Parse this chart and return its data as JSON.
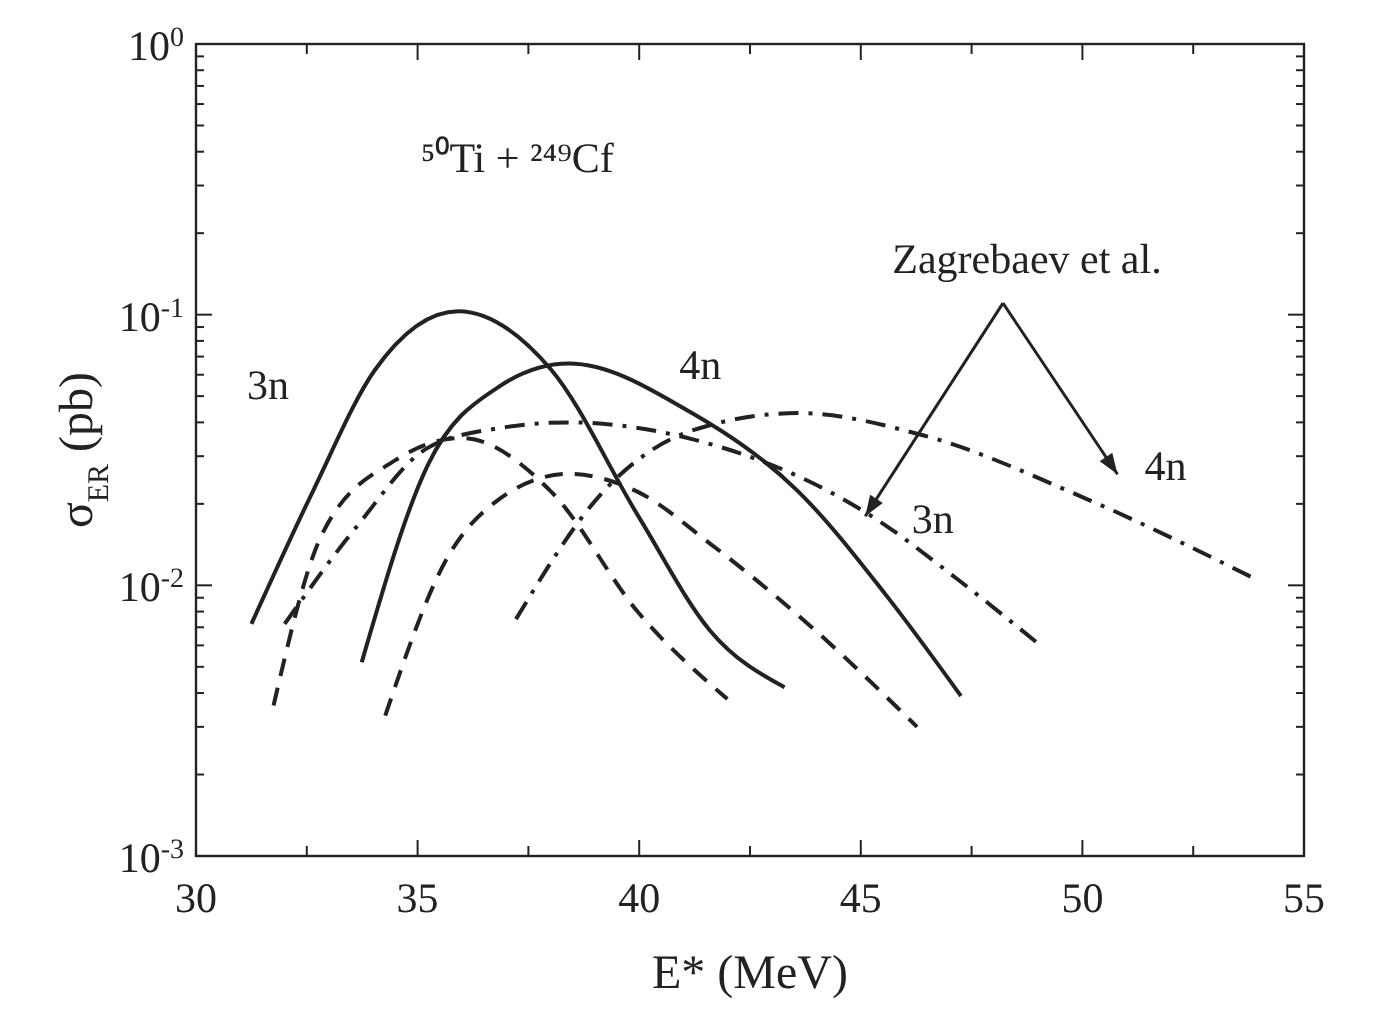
{
  "chart_data": {
    "type": "line",
    "xlabel": "E* (MeV)",
    "ylabel": "σ$_{ER}$ (pb)",
    "log": "y",
    "xlim": [
      30,
      55
    ],
    "ylim": [
      0.001,
      1
    ],
    "xticks": [
      30,
      {
        "value": 32.5,
        "label": null
      },
      35,
      {
        "value": 37.5,
        "label": null
      },
      40,
      {
        "value": 42.5,
        "label": null
      },
      45,
      {
        "value": 47.5,
        "label": null
      },
      50,
      {
        "value": 52.5,
        "label": null
      },
      55
    ],
    "yticks": [
      {
        "value": 0.001,
        "label": "10$^{-3}$"
      },
      {
        "value": 0.01,
        "label": "10$^{-2}$"
      },
      {
        "value": 0.1,
        "label": "10$^{-1}$"
      },
      {
        "value": 1,
        "label": "10$^{0}$"
      }
    ],
    "marker": "none",
    "series": [
      {
        "color": "#222222",
        "line_style": "solid",
        "x": [
          31.25,
          32.64,
          34.04,
          35.92,
          38.0,
          39.99,
          41.6,
          43.28
        ],
        "values": [
          0.0072,
          0.0223,
          0.0626,
          0.103,
          0.063,
          0.0179,
          0.0068,
          0.0042
        ]
      },
      {
        "color": "#222222",
        "line_style": "solid",
        "x": [
          33.74,
          35.23,
          36.82,
          38.41,
          41.19,
          43.58,
          45.57,
          47.26
        ],
        "values": [
          0.0052,
          0.0278,
          0.054,
          0.066,
          0.0433,
          0.0223,
          0.0092,
          0.0039
        ]
      },
      {
        "color": "#222222",
        "line_style": "dashed",
        "x": [
          31.75,
          32.84,
          34.5,
          36.0,
          38.0,
          39.99,
          41.99
        ],
        "values": [
          0.0036,
          0.0154,
          0.029,
          0.035,
          0.0223,
          0.0079,
          0.0038
        ]
      },
      {
        "color": "#222222",
        "line_style": "dashed",
        "x": [
          34.27,
          35.63,
          36.82,
          38.41,
          40.0,
          41.59,
          43.98,
          46.27
        ],
        "values": [
          0.0033,
          0.0123,
          0.0207,
          0.0258,
          0.022,
          0.0143,
          0.0068,
          0.003
        ]
      },
      {
        "color": "#222222",
        "line_style": "dashdot",
        "x": [
          32.0,
          33.64,
          35.23,
          36.8,
          38.41,
          41.19,
          45.27,
          47.16,
          49.05
        ],
        "values": [
          0.0072,
          0.0166,
          0.0322,
          0.038,
          0.04,
          0.0347,
          0.0179,
          0.0106,
          0.006
        ]
      },
      {
        "color": "#222222",
        "line_style": "dashdot",
        "x": [
          37.22,
          39.2,
          41.19,
          43.58,
          46.36,
          50.14,
          53.88
        ],
        "values": [
          0.0075,
          0.0223,
          0.0373,
          0.0433,
          0.036,
          0.0207,
          0.0106
        ]
      }
    ],
    "annotations": [
      "⁵⁰Ti + ²⁴⁹Cf",
      "3n",
      "4n",
      {
        "text": "Zagrebaev et al.",
        "x": 45.1,
        "y": 0.018
      },
      "3n",
      "4n"
    ]
  }
}
